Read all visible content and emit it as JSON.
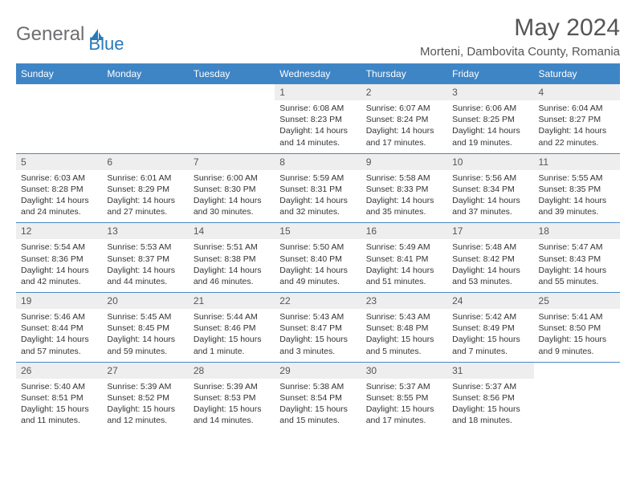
{
  "brand": {
    "part1": "General",
    "part2": "Blue"
  },
  "title": "May 2024",
  "location": "Morteni, Dambovita County, Romania",
  "colors": {
    "header_bg": "#3e85c6",
    "border": "#4a88c5",
    "daynum_bg": "#eeeeee",
    "text_gray": "#555555",
    "brand_gray": "#6d6e71",
    "brand_blue": "#2a7ab9"
  },
  "weekdays": [
    "Sunday",
    "Monday",
    "Tuesday",
    "Wednesday",
    "Thursday",
    "Friday",
    "Saturday"
  ],
  "weeks": [
    {
      "nums": [
        "",
        "",
        "",
        "1",
        "2",
        "3",
        "4"
      ],
      "cells": [
        {},
        {},
        {},
        {
          "sunrise": "Sunrise: 6:08 AM",
          "sunset": "Sunset: 8:23 PM",
          "day1": "Daylight: 14 hours",
          "day2": "and 14 minutes."
        },
        {
          "sunrise": "Sunrise: 6:07 AM",
          "sunset": "Sunset: 8:24 PM",
          "day1": "Daylight: 14 hours",
          "day2": "and 17 minutes."
        },
        {
          "sunrise": "Sunrise: 6:06 AM",
          "sunset": "Sunset: 8:25 PM",
          "day1": "Daylight: 14 hours",
          "day2": "and 19 minutes."
        },
        {
          "sunrise": "Sunrise: 6:04 AM",
          "sunset": "Sunset: 8:27 PM",
          "day1": "Daylight: 14 hours",
          "day2": "and 22 minutes."
        }
      ]
    },
    {
      "nums": [
        "5",
        "6",
        "7",
        "8",
        "9",
        "10",
        "11"
      ],
      "cells": [
        {
          "sunrise": "Sunrise: 6:03 AM",
          "sunset": "Sunset: 8:28 PM",
          "day1": "Daylight: 14 hours",
          "day2": "and 24 minutes."
        },
        {
          "sunrise": "Sunrise: 6:01 AM",
          "sunset": "Sunset: 8:29 PM",
          "day1": "Daylight: 14 hours",
          "day2": "and 27 minutes."
        },
        {
          "sunrise": "Sunrise: 6:00 AM",
          "sunset": "Sunset: 8:30 PM",
          "day1": "Daylight: 14 hours",
          "day2": "and 30 minutes."
        },
        {
          "sunrise": "Sunrise: 5:59 AM",
          "sunset": "Sunset: 8:31 PM",
          "day1": "Daylight: 14 hours",
          "day2": "and 32 minutes."
        },
        {
          "sunrise": "Sunrise: 5:58 AM",
          "sunset": "Sunset: 8:33 PM",
          "day1": "Daylight: 14 hours",
          "day2": "and 35 minutes."
        },
        {
          "sunrise": "Sunrise: 5:56 AM",
          "sunset": "Sunset: 8:34 PM",
          "day1": "Daylight: 14 hours",
          "day2": "and 37 minutes."
        },
        {
          "sunrise": "Sunrise: 5:55 AM",
          "sunset": "Sunset: 8:35 PM",
          "day1": "Daylight: 14 hours",
          "day2": "and 39 minutes."
        }
      ]
    },
    {
      "nums": [
        "12",
        "13",
        "14",
        "15",
        "16",
        "17",
        "18"
      ],
      "cells": [
        {
          "sunrise": "Sunrise: 5:54 AM",
          "sunset": "Sunset: 8:36 PM",
          "day1": "Daylight: 14 hours",
          "day2": "and 42 minutes."
        },
        {
          "sunrise": "Sunrise: 5:53 AM",
          "sunset": "Sunset: 8:37 PM",
          "day1": "Daylight: 14 hours",
          "day2": "and 44 minutes."
        },
        {
          "sunrise": "Sunrise: 5:51 AM",
          "sunset": "Sunset: 8:38 PM",
          "day1": "Daylight: 14 hours",
          "day2": "and 46 minutes."
        },
        {
          "sunrise": "Sunrise: 5:50 AM",
          "sunset": "Sunset: 8:40 PM",
          "day1": "Daylight: 14 hours",
          "day2": "and 49 minutes."
        },
        {
          "sunrise": "Sunrise: 5:49 AM",
          "sunset": "Sunset: 8:41 PM",
          "day1": "Daylight: 14 hours",
          "day2": "and 51 minutes."
        },
        {
          "sunrise": "Sunrise: 5:48 AM",
          "sunset": "Sunset: 8:42 PM",
          "day1": "Daylight: 14 hours",
          "day2": "and 53 minutes."
        },
        {
          "sunrise": "Sunrise: 5:47 AM",
          "sunset": "Sunset: 8:43 PM",
          "day1": "Daylight: 14 hours",
          "day2": "and 55 minutes."
        }
      ]
    },
    {
      "nums": [
        "19",
        "20",
        "21",
        "22",
        "23",
        "24",
        "25"
      ],
      "cells": [
        {
          "sunrise": "Sunrise: 5:46 AM",
          "sunset": "Sunset: 8:44 PM",
          "day1": "Daylight: 14 hours",
          "day2": "and 57 minutes."
        },
        {
          "sunrise": "Sunrise: 5:45 AM",
          "sunset": "Sunset: 8:45 PM",
          "day1": "Daylight: 14 hours",
          "day2": "and 59 minutes."
        },
        {
          "sunrise": "Sunrise: 5:44 AM",
          "sunset": "Sunset: 8:46 PM",
          "day1": "Daylight: 15 hours",
          "day2": "and 1 minute."
        },
        {
          "sunrise": "Sunrise: 5:43 AM",
          "sunset": "Sunset: 8:47 PM",
          "day1": "Daylight: 15 hours",
          "day2": "and 3 minutes."
        },
        {
          "sunrise": "Sunrise: 5:43 AM",
          "sunset": "Sunset: 8:48 PM",
          "day1": "Daylight: 15 hours",
          "day2": "and 5 minutes."
        },
        {
          "sunrise": "Sunrise: 5:42 AM",
          "sunset": "Sunset: 8:49 PM",
          "day1": "Daylight: 15 hours",
          "day2": "and 7 minutes."
        },
        {
          "sunrise": "Sunrise: 5:41 AM",
          "sunset": "Sunset: 8:50 PM",
          "day1": "Daylight: 15 hours",
          "day2": "and 9 minutes."
        }
      ]
    },
    {
      "nums": [
        "26",
        "27",
        "28",
        "29",
        "30",
        "31",
        ""
      ],
      "cells": [
        {
          "sunrise": "Sunrise: 5:40 AM",
          "sunset": "Sunset: 8:51 PM",
          "day1": "Daylight: 15 hours",
          "day2": "and 11 minutes."
        },
        {
          "sunrise": "Sunrise: 5:39 AM",
          "sunset": "Sunset: 8:52 PM",
          "day1": "Daylight: 15 hours",
          "day2": "and 12 minutes."
        },
        {
          "sunrise": "Sunrise: 5:39 AM",
          "sunset": "Sunset: 8:53 PM",
          "day1": "Daylight: 15 hours",
          "day2": "and 14 minutes."
        },
        {
          "sunrise": "Sunrise: 5:38 AM",
          "sunset": "Sunset: 8:54 PM",
          "day1": "Daylight: 15 hours",
          "day2": "and 15 minutes."
        },
        {
          "sunrise": "Sunrise: 5:37 AM",
          "sunset": "Sunset: 8:55 PM",
          "day1": "Daylight: 15 hours",
          "day2": "and 17 minutes."
        },
        {
          "sunrise": "Sunrise: 5:37 AM",
          "sunset": "Sunset: 8:56 PM",
          "day1": "Daylight: 15 hours",
          "day2": "and 18 minutes."
        },
        {}
      ]
    }
  ]
}
